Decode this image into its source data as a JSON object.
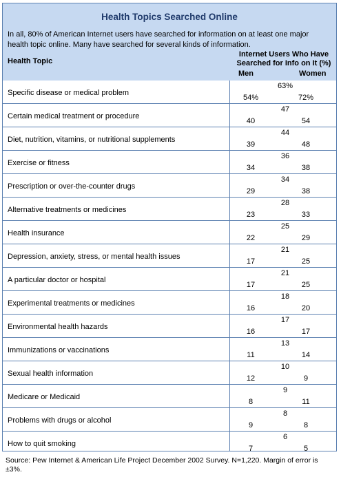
{
  "title": "Health Topics Searched Online",
  "subtitle": "In all, 80% of American Internet users have searched for information on at least one major health topic online. Many have searched for several kinds of information.",
  "columns": {
    "topic": "Health Topic",
    "users": "Internet Users Who Have Searched for Info on It (%)",
    "men": "Men",
    "women": "Women"
  },
  "rows": [
    {
      "topic": "Specific disease or medical problem",
      "total": "63%",
      "men": "54%",
      "women": "72%"
    },
    {
      "topic": "Certain medical treatment or procedure",
      "total": "47",
      "men": "40",
      "women": "54"
    },
    {
      "topic": "Diet, nutrition, vitamins, or nutritional supplements",
      "total": "44",
      "men": "39",
      "women": "48"
    },
    {
      "topic": "Exercise or fitness",
      "total": "36",
      "men": "34",
      "women": "38"
    },
    {
      "topic": "Prescription or over-the-counter drugs",
      "total": "34",
      "men": "29",
      "women": "38"
    },
    {
      "topic": "Alternative treatments or medicines",
      "total": "28",
      "men": "23",
      "women": "33"
    },
    {
      "topic": "Health insurance",
      "total": "25",
      "men": "22",
      "women": "29"
    },
    {
      "topic": "Depression, anxiety, stress, or mental health issues",
      "total": "21",
      "men": "17",
      "women": "25"
    },
    {
      "topic": "A particular doctor or hospital",
      "total": "21",
      "men": "17",
      "women": "25"
    },
    {
      "topic": "Experimental treatments or medicines",
      "total": "18",
      "men": "16",
      "women": "20"
    },
    {
      "topic": "Environmental health hazards",
      "total": "17",
      "men": "16",
      "women": "17"
    },
    {
      "topic": "Immunizations or vaccinations",
      "total": "13",
      "men": "11",
      "women": "14"
    },
    {
      "topic": "Sexual health information",
      "total": "10",
      "men": "12",
      "women": "9"
    },
    {
      "topic": "Medicare or Medicaid",
      "total": "9",
      "men": "8",
      "women": "11"
    },
    {
      "topic": "Problems with drugs or alcohol",
      "total": "8",
      "men": "9",
      "women": "8"
    },
    {
      "topic": "How to quit smoking",
      "total": "6",
      "men": "7",
      "women": "5"
    }
  ],
  "footnote": "Source: Pew Internet & American Life Project December 2002 Survey. N=1,220. Margin of error is ±3%."
}
